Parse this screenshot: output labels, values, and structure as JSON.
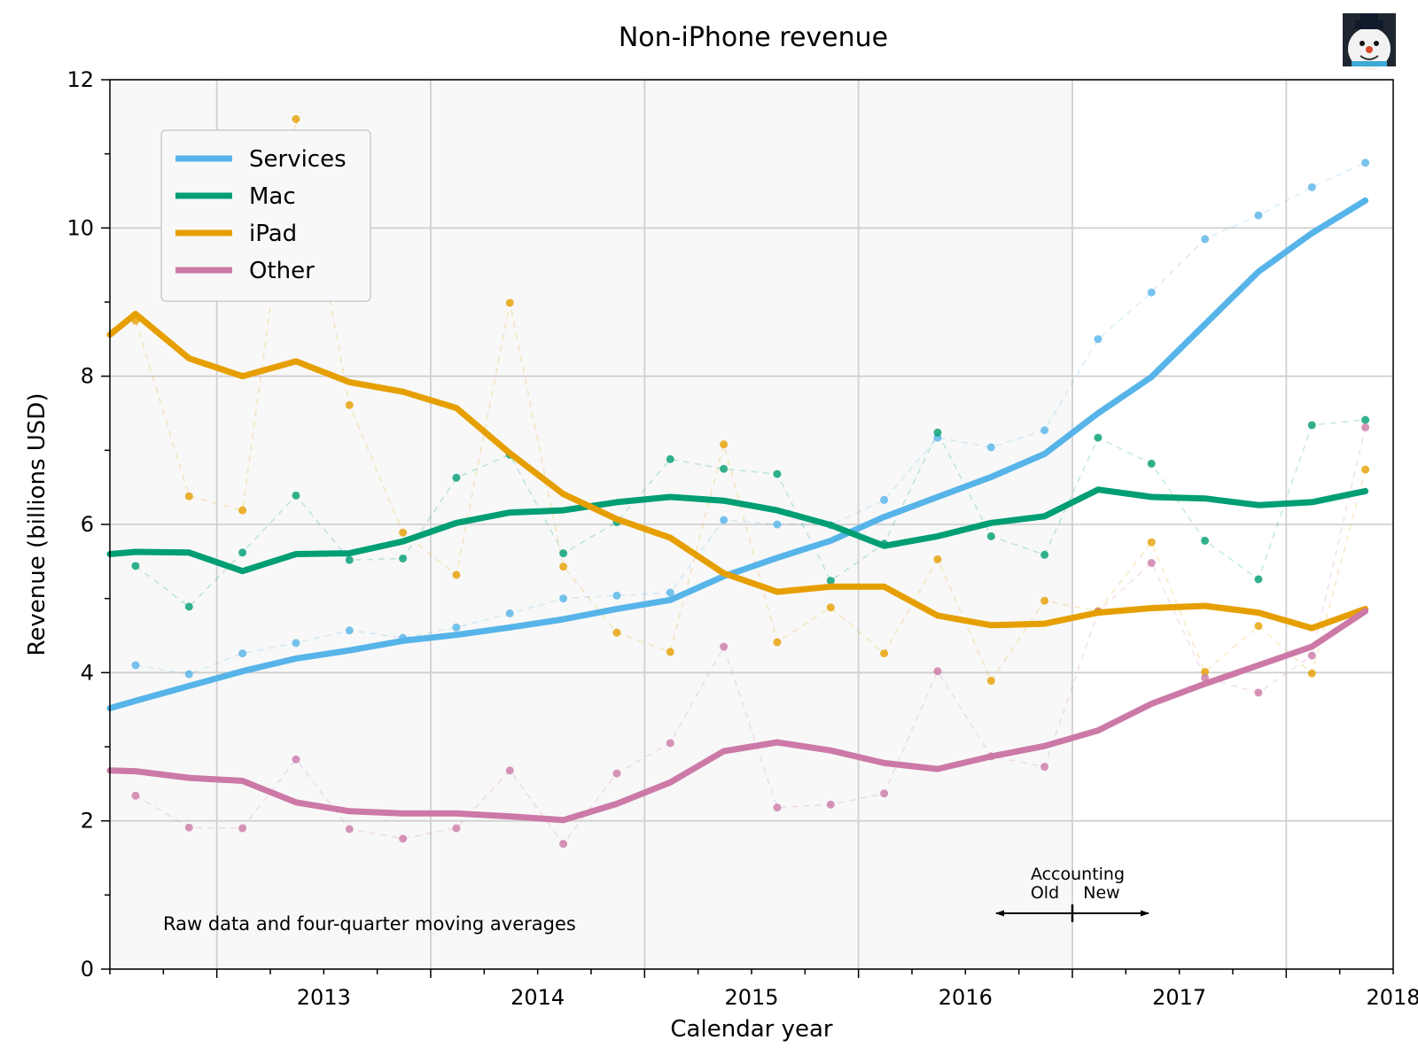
{
  "chart_data": {
    "type": "line",
    "title": "Non-iPhone revenue",
    "xlabel": "Calendar year",
    "ylabel": "Revenue (billions USD)",
    "xlim": [
      2012.5,
      2018.5
    ],
    "ylim": [
      0,
      12
    ],
    "x_ticks": [
      2013,
      2014,
      2015,
      2016,
      2017,
      2018
    ],
    "y_ticks": [
      0,
      2,
      4,
      6,
      8,
      10,
      12
    ],
    "grid": true,
    "legend_position": "top-left",
    "annotation": "Raw data and four-quarter moving averages",
    "accounting": {
      "title": "Accounting",
      "old_label": "Old",
      "new_label": "New",
      "change_at": 2017.0
    },
    "series": [
      {
        "name": "Services",
        "color": "#56b4e9",
        "raw": [
          {
            "x": 2012.62,
            "y": 4.1
          },
          {
            "x": 2012.87,
            "y": 3.98
          },
          {
            "x": 2013.12,
            "y": 4.26
          },
          {
            "x": 2013.37,
            "y": 4.4
          },
          {
            "x": 2013.62,
            "y": 4.57
          },
          {
            "x": 2013.87,
            "y": 4.47
          },
          {
            "x": 2014.12,
            "y": 4.61
          },
          {
            "x": 2014.37,
            "y": 4.8
          },
          {
            "x": 2014.62,
            "y": 5.0
          },
          {
            "x": 2014.87,
            "y": 5.04
          },
          {
            "x": 2015.12,
            "y": 5.08
          },
          {
            "x": 2015.37,
            "y": 6.06
          },
          {
            "x": 2015.62,
            "y": 6.0
          },
          {
            "x": 2015.87,
            "y": 5.99
          },
          {
            "x": 2016.12,
            "y": 6.33
          },
          {
            "x": 2016.37,
            "y": 7.17
          },
          {
            "x": 2016.62,
            "y": 7.04
          },
          {
            "x": 2016.87,
            "y": 7.27
          },
          {
            "x": 2017.12,
            "y": 8.5
          },
          {
            "x": 2017.37,
            "y": 9.13
          },
          {
            "x": 2017.62,
            "y": 9.85
          },
          {
            "x": 2017.87,
            "y": 10.17
          },
          {
            "x": 2018.12,
            "y": 10.55
          },
          {
            "x": 2018.37,
            "y": 10.88
          }
        ],
        "moving_average": [
          {
            "x": 2012.5,
            "y": 3.52
          },
          {
            "x": 2012.62,
            "y": 3.62
          },
          {
            "x": 2012.87,
            "y": 3.82
          },
          {
            "x": 2013.12,
            "y": 4.02
          },
          {
            "x": 2013.37,
            "y": 4.19
          },
          {
            "x": 2013.62,
            "y": 4.3
          },
          {
            "x": 2013.87,
            "y": 4.43
          },
          {
            "x": 2014.12,
            "y": 4.51
          },
          {
            "x": 2014.37,
            "y": 4.61
          },
          {
            "x": 2014.62,
            "y": 4.72
          },
          {
            "x": 2014.87,
            "y": 4.86
          },
          {
            "x": 2015.12,
            "y": 4.98
          },
          {
            "x": 2015.37,
            "y": 5.3
          },
          {
            "x": 2015.62,
            "y": 5.55
          },
          {
            "x": 2015.87,
            "y": 5.78
          },
          {
            "x": 2016.12,
            "y": 6.1
          },
          {
            "x": 2016.37,
            "y": 6.37
          },
          {
            "x": 2016.62,
            "y": 6.64
          },
          {
            "x": 2016.87,
            "y": 6.95
          },
          {
            "x": 2017.12,
            "y": 7.5
          },
          {
            "x": 2017.37,
            "y": 7.99
          },
          {
            "x": 2017.62,
            "y": 8.7
          },
          {
            "x": 2017.87,
            "y": 9.41
          },
          {
            "x": 2018.12,
            "y": 9.93
          },
          {
            "x": 2018.37,
            "y": 10.37
          }
        ]
      },
      {
        "name": "Mac",
        "color": "#009e73",
        "raw": [
          {
            "x": 2012.62,
            "y": 5.44
          },
          {
            "x": 2012.87,
            "y": 4.89
          },
          {
            "x": 2013.12,
            "y": 5.62
          },
          {
            "x": 2013.37,
            "y": 6.39
          },
          {
            "x": 2013.62,
            "y": 5.52
          },
          {
            "x": 2013.87,
            "y": 5.54
          },
          {
            "x": 2014.12,
            "y": 6.63
          },
          {
            "x": 2014.37,
            "y": 6.94
          },
          {
            "x": 2014.62,
            "y": 5.61
          },
          {
            "x": 2014.87,
            "y": 6.03
          },
          {
            "x": 2015.12,
            "y": 6.88
          },
          {
            "x": 2015.37,
            "y": 6.75
          },
          {
            "x": 2015.62,
            "y": 6.68
          },
          {
            "x": 2015.87,
            "y": 5.24
          },
          {
            "x": 2016.12,
            "y": 5.74
          },
          {
            "x": 2016.37,
            "y": 7.24
          },
          {
            "x": 2016.62,
            "y": 5.84
          },
          {
            "x": 2016.87,
            "y": 5.59
          },
          {
            "x": 2017.12,
            "y": 7.17
          },
          {
            "x": 2017.37,
            "y": 6.82
          },
          {
            "x": 2017.62,
            "y": 5.78
          },
          {
            "x": 2017.87,
            "y": 5.26
          },
          {
            "x": 2018.12,
            "y": 7.34
          },
          {
            "x": 2018.37,
            "y": 7.41
          }
        ],
        "moving_average": [
          {
            "x": 2012.5,
            "y": 5.6
          },
          {
            "x": 2012.62,
            "y": 5.63
          },
          {
            "x": 2012.87,
            "y": 5.62
          },
          {
            "x": 2013.12,
            "y": 5.37
          },
          {
            "x": 2013.37,
            "y": 5.6
          },
          {
            "x": 2013.62,
            "y": 5.61
          },
          {
            "x": 2013.87,
            "y": 5.77
          },
          {
            "x": 2014.12,
            "y": 6.02
          },
          {
            "x": 2014.37,
            "y": 6.16
          },
          {
            "x": 2014.62,
            "y": 6.19
          },
          {
            "x": 2014.87,
            "y": 6.3
          },
          {
            "x": 2015.12,
            "y": 6.37
          },
          {
            "x": 2015.37,
            "y": 6.32
          },
          {
            "x": 2015.62,
            "y": 6.19
          },
          {
            "x": 2015.87,
            "y": 5.99
          },
          {
            "x": 2016.12,
            "y": 5.71
          },
          {
            "x": 2016.37,
            "y": 5.84
          },
          {
            "x": 2016.62,
            "y": 6.02
          },
          {
            "x": 2016.87,
            "y": 6.11
          },
          {
            "x": 2017.12,
            "y": 6.47
          },
          {
            "x": 2017.37,
            "y": 6.37
          },
          {
            "x": 2017.62,
            "y": 6.35
          },
          {
            "x": 2017.87,
            "y": 6.26
          },
          {
            "x": 2018.12,
            "y": 6.3
          },
          {
            "x": 2018.37,
            "y": 6.45
          }
        ]
      },
      {
        "name": "iPad",
        "color": "#e69f00",
        "raw": [
          {
            "x": 2012.62,
            "y": 8.75
          },
          {
            "x": 2012.87,
            "y": 6.38
          },
          {
            "x": 2013.12,
            "y": 6.19
          },
          {
            "x": 2013.37,
            "y": 11.47
          },
          {
            "x": 2013.62,
            "y": 7.61
          },
          {
            "x": 2013.87,
            "y": 5.89
          },
          {
            "x": 2014.12,
            "y": 5.32
          },
          {
            "x": 2014.37,
            "y": 8.99
          },
          {
            "x": 2014.62,
            "y": 5.43
          },
          {
            "x": 2014.87,
            "y": 4.54
          },
          {
            "x": 2015.12,
            "y": 4.28
          },
          {
            "x": 2015.37,
            "y": 7.08
          },
          {
            "x": 2015.62,
            "y": 4.41
          },
          {
            "x": 2015.87,
            "y": 4.88
          },
          {
            "x": 2016.12,
            "y": 4.26
          },
          {
            "x": 2016.37,
            "y": 5.53
          },
          {
            "x": 2016.62,
            "y": 3.89
          },
          {
            "x": 2016.87,
            "y": 4.97
          },
          {
            "x": 2017.12,
            "y": 4.83
          },
          {
            "x": 2017.37,
            "y": 5.76
          },
          {
            "x": 2017.62,
            "y": 4.01
          },
          {
            "x": 2017.87,
            "y": 4.63
          },
          {
            "x": 2018.12,
            "y": 3.99
          },
          {
            "x": 2018.37,
            "y": 6.74
          }
        ],
        "moving_average": [
          {
            "x": 2012.5,
            "y": 8.56
          },
          {
            "x": 2012.62,
            "y": 8.84
          },
          {
            "x": 2012.87,
            "y": 8.24
          },
          {
            "x": 2013.12,
            "y": 8.0
          },
          {
            "x": 2013.37,
            "y": 8.2
          },
          {
            "x": 2013.62,
            "y": 7.92
          },
          {
            "x": 2013.87,
            "y": 7.79
          },
          {
            "x": 2014.12,
            "y": 7.57
          },
          {
            "x": 2014.37,
            "y": 6.96
          },
          {
            "x": 2014.62,
            "y": 6.41
          },
          {
            "x": 2014.87,
            "y": 6.07
          },
          {
            "x": 2015.12,
            "y": 5.82
          },
          {
            "x": 2015.37,
            "y": 5.34
          },
          {
            "x": 2015.62,
            "y": 5.09
          },
          {
            "x": 2015.87,
            "y": 5.16
          },
          {
            "x": 2016.12,
            "y": 5.16
          },
          {
            "x": 2016.37,
            "y": 4.77
          },
          {
            "x": 2016.62,
            "y": 4.64
          },
          {
            "x": 2016.87,
            "y": 4.66
          },
          {
            "x": 2017.12,
            "y": 4.81
          },
          {
            "x": 2017.37,
            "y": 4.87
          },
          {
            "x": 2017.62,
            "y": 4.9
          },
          {
            "x": 2017.87,
            "y": 4.81
          },
          {
            "x": 2018.12,
            "y": 4.6
          },
          {
            "x": 2018.37,
            "y": 4.86
          }
        ]
      },
      {
        "name": "Other",
        "color": "#cc79a7",
        "raw": [
          {
            "x": 2012.62,
            "y": 2.34
          },
          {
            "x": 2012.87,
            "y": 1.91
          },
          {
            "x": 2013.12,
            "y": 1.9
          },
          {
            "x": 2013.37,
            "y": 2.83
          },
          {
            "x": 2013.62,
            "y": 1.89
          },
          {
            "x": 2013.87,
            "y": 1.76
          },
          {
            "x": 2014.12,
            "y": 1.9
          },
          {
            "x": 2014.37,
            "y": 2.68
          },
          {
            "x": 2014.62,
            "y": 1.69
          },
          {
            "x": 2014.87,
            "y": 2.64
          },
          {
            "x": 2015.12,
            "y": 3.05
          },
          {
            "x": 2015.37,
            "y": 4.35
          },
          {
            "x": 2015.62,
            "y": 2.18
          },
          {
            "x": 2015.87,
            "y": 2.22
          },
          {
            "x": 2016.12,
            "y": 2.37
          },
          {
            "x": 2016.37,
            "y": 4.02
          },
          {
            "x": 2016.62,
            "y": 2.87
          },
          {
            "x": 2016.87,
            "y": 2.73
          },
          {
            "x": 2017.12,
            "y": 4.82
          },
          {
            "x": 2017.37,
            "y": 5.48
          },
          {
            "x": 2017.62,
            "y": 3.93
          },
          {
            "x": 2017.87,
            "y": 3.73
          },
          {
            "x": 2018.12,
            "y": 4.23
          },
          {
            "x": 2018.37,
            "y": 7.31
          }
        ],
        "moving_average": [
          {
            "x": 2012.5,
            "y": 2.68
          },
          {
            "x": 2012.62,
            "y": 2.67
          },
          {
            "x": 2012.87,
            "y": 2.58
          },
          {
            "x": 2013.12,
            "y": 2.54
          },
          {
            "x": 2013.37,
            "y": 2.25
          },
          {
            "x": 2013.62,
            "y": 2.13
          },
          {
            "x": 2013.87,
            "y": 2.1
          },
          {
            "x": 2014.12,
            "y": 2.1
          },
          {
            "x": 2014.37,
            "y": 2.06
          },
          {
            "x": 2014.62,
            "y": 2.01
          },
          {
            "x": 2014.87,
            "y": 2.23
          },
          {
            "x": 2015.12,
            "y": 2.52
          },
          {
            "x": 2015.37,
            "y": 2.94
          },
          {
            "x": 2015.62,
            "y": 3.06
          },
          {
            "x": 2015.87,
            "y": 2.95
          },
          {
            "x": 2016.12,
            "y": 2.78
          },
          {
            "x": 2016.37,
            "y": 2.7
          },
          {
            "x": 2016.62,
            "y": 2.87
          },
          {
            "x": 2016.87,
            "y": 3.01
          },
          {
            "x": 2017.12,
            "y": 3.22
          },
          {
            "x": 2017.37,
            "y": 3.58
          },
          {
            "x": 2017.62,
            "y": 3.85
          },
          {
            "x": 2017.87,
            "y": 4.1
          },
          {
            "x": 2018.12,
            "y": 4.35
          },
          {
            "x": 2018.37,
            "y": 4.83
          }
        ]
      }
    ]
  },
  "icons": {
    "avatar": "snowman-avatar-icon"
  }
}
